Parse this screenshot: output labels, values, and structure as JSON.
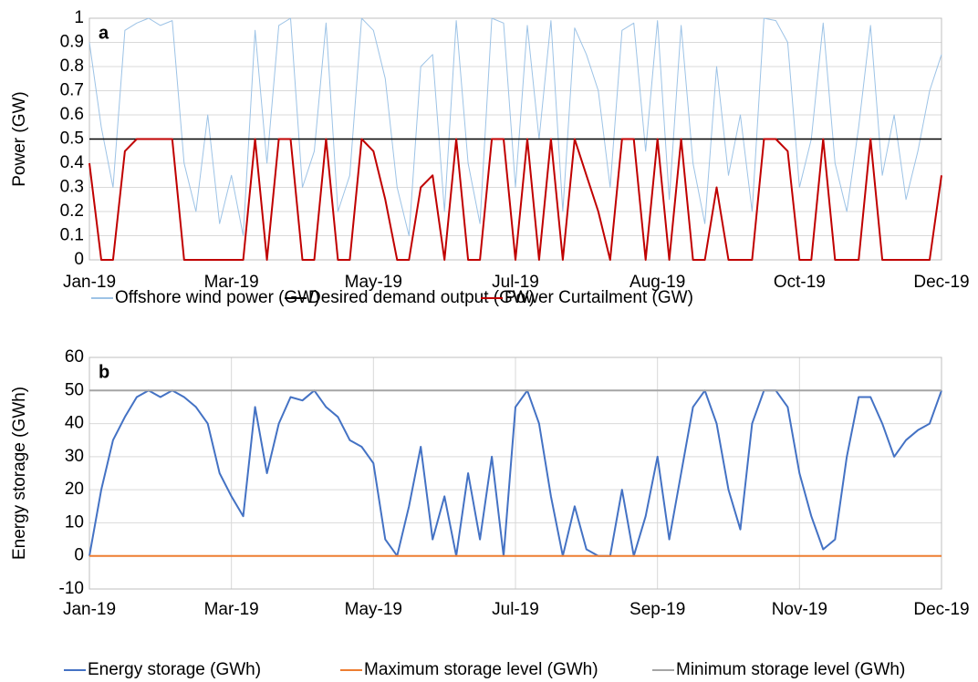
{
  "chart_data": [
    {
      "type": "line",
      "panel_label": "a",
      "ylabel": "Power (GW)",
      "categories": [
        "Jan-19",
        null,
        null,
        null,
        null,
        null,
        null,
        null,
        null,
        null,
        null,
        null,
        "Mar-19",
        null,
        null,
        null,
        null,
        null,
        null,
        null,
        null,
        null,
        null,
        null,
        "May-19",
        null,
        null,
        null,
        null,
        null,
        null,
        null,
        null,
        null,
        null,
        null,
        "Jul-19",
        null,
        null,
        null,
        null,
        null,
        null,
        null,
        null,
        null,
        null,
        null,
        "Aug-19",
        null,
        null,
        null,
        null,
        null,
        null,
        null,
        null,
        null,
        null,
        null,
        "Oct-19",
        null,
        null,
        null,
        null,
        null,
        null,
        null,
        null,
        null,
        null,
        null,
        "Dec-19"
      ],
      "series": [
        {
          "name": "Offshore wind power (GW)",
          "color": "#9dc3e6",
          "width": 1,
          "values": [
            0.9,
            0.55,
            0.3,
            0.95,
            0.98,
            1,
            0.97,
            0.99,
            0.4,
            0.2,
            0.6,
            0.15,
            0.35,
            0.1,
            0.95,
            0.4,
            0.97,
            1,
            0.3,
            0.45,
            0.98,
            0.2,
            0.35,
            1,
            0.95,
            0.75,
            0.3,
            0.1,
            0.8,
            0.85,
            0.2,
            0.99,
            0.4,
            0.15,
            1,
            0.98,
            0.3,
            0.97,
            0.5,
            0.99,
            0.2,
            0.96,
            0.85,
            0.7,
            0.3,
            0.95,
            0.98,
            0.45,
            0.99,
            0.25,
            0.97,
            0.4,
            0.15,
            0.8,
            0.35,
            0.6,
            0.2,
            1,
            0.99,
            0.9,
            0.3,
            0.5,
            0.98,
            0.4,
            0.2,
            0.55,
            0.97,
            0.35,
            0.6,
            0.25,
            0.45,
            0.7,
            0.85
          ]
        },
        {
          "name": "Desired demand output (GW)",
          "color": "#000000",
          "width": 1.5,
          "values": [
            0.5,
            0.5,
            0.5,
            0.5,
            0.5,
            0.5,
            0.5,
            0.5,
            0.5,
            0.5,
            0.5,
            0.5,
            0.5,
            0.5,
            0.5,
            0.5,
            0.5,
            0.5,
            0.5,
            0.5,
            0.5,
            0.5,
            0.5,
            0.5,
            0.5,
            0.5,
            0.5,
            0.5,
            0.5,
            0.5,
            0.5,
            0.5,
            0.5,
            0.5,
            0.5,
            0.5,
            0.5,
            0.5,
            0.5,
            0.5,
            0.5,
            0.5,
            0.5,
            0.5,
            0.5,
            0.5,
            0.5,
            0.5,
            0.5,
            0.5,
            0.5,
            0.5,
            0.5,
            0.5,
            0.5,
            0.5,
            0.5,
            0.5,
            0.5,
            0.5,
            0.5,
            0.5,
            0.5,
            0.5,
            0.5,
            0.5,
            0.5,
            0.5,
            0.5,
            0.5,
            0.5,
            0.5,
            0.5
          ]
        },
        {
          "name": "Power Curtailment (GW)",
          "color": "#c00000",
          "width": 2,
          "values": [
            0.4,
            0,
            0,
            0.45,
            0.5,
            0.5,
            0.5,
            0.5,
            0,
            0,
            0,
            0,
            0,
            0,
            0.5,
            0,
            0.5,
            0.5,
            0,
            0,
            0.5,
            0,
            0,
            0.5,
            0.45,
            0.25,
            0,
            0,
            0.3,
            0.35,
            0,
            0.5,
            0,
            0,
            0.5,
            0.5,
            0,
            0.5,
            0,
            0.5,
            0,
            0.5,
            0.35,
            0.2,
            0,
            0.5,
            0.5,
            0,
            0.5,
            0,
            0.5,
            0,
            0,
            0.3,
            0,
            0,
            0,
            0.5,
            0.5,
            0.45,
            0,
            0,
            0.5,
            0,
            0,
            0,
            0.5,
            0,
            0,
            0,
            0,
            0,
            0.35
          ]
        }
      ],
      "ylim": [
        0,
        1
      ],
      "yticks": [
        0,
        0.1,
        0.2,
        0.3,
        0.4,
        0.5,
        0.6,
        0.7,
        0.8,
        0.9,
        1
      ],
      "grid": "y"
    },
    {
      "type": "line",
      "panel_label": "b",
      "ylabel": "Energy storage (GWh)",
      "categories": [
        "Jan-19",
        null,
        null,
        null,
        null,
        null,
        null,
        null,
        null,
        null,
        null,
        null,
        "Mar-19",
        null,
        null,
        null,
        null,
        null,
        null,
        null,
        null,
        null,
        null,
        null,
        "May-19",
        null,
        null,
        null,
        null,
        null,
        null,
        null,
        null,
        null,
        null,
        null,
        "Jul-19",
        null,
        null,
        null,
        null,
        null,
        null,
        null,
        null,
        null,
        null,
        null,
        "Sep-19",
        null,
        null,
        null,
        null,
        null,
        null,
        null,
        null,
        null,
        null,
        null,
        "Nov-19",
        null,
        null,
        null,
        null,
        null,
        null,
        null,
        null,
        null,
        null,
        null,
        "Dec-19"
      ],
      "series": [
        {
          "name": "Energy storage (GWh)",
          "color": "#4472c4",
          "width": 2,
          "values": [
            0,
            20,
            35,
            42,
            48,
            50,
            48,
            50,
            48,
            45,
            40,
            25,
            18,
            12,
            45,
            25,
            40,
            48,
            47,
            50,
            45,
            42,
            35,
            33,
            28,
            5,
            0,
            15,
            33,
            5,
            18,
            0,
            25,
            5,
            30,
            0,
            45,
            50,
            40,
            18,
            0,
            15,
            2,
            0,
            0,
            20,
            0,
            12,
            30,
            5,
            25,
            45,
            50,
            40,
            20,
            8,
            40,
            50,
            50,
            45,
            25,
            12,
            2,
            5,
            30,
            48,
            48,
            40,
            30,
            35,
            38,
            40,
            50
          ]
        },
        {
          "name": "Maximum storage level (GWh)",
          "color": "#ed7d31",
          "width": 2,
          "values": [
            0,
            0,
            0,
            0,
            0,
            0,
            0,
            0,
            0,
            0,
            0,
            0,
            0,
            0,
            0,
            0,
            0,
            0,
            0,
            0,
            0,
            0,
            0,
            0,
            0,
            0,
            0,
            0,
            0,
            0,
            0,
            0,
            0,
            0,
            0,
            0,
            0,
            0,
            0,
            0,
            0,
            0,
            0,
            0,
            0,
            0,
            0,
            0,
            0,
            0,
            0,
            0,
            0,
            0,
            0,
            0,
            0,
            0,
            0,
            0,
            0,
            0,
            0,
            0,
            0,
            0,
            0,
            0,
            0,
            0,
            0,
            0,
            0
          ]
        },
        {
          "name": "Minimum storage level (GWh)",
          "color": "#a5a5a5",
          "width": 2,
          "values": [
            50,
            50,
            50,
            50,
            50,
            50,
            50,
            50,
            50,
            50,
            50,
            50,
            50,
            50,
            50,
            50,
            50,
            50,
            50,
            50,
            50,
            50,
            50,
            50,
            50,
            50,
            50,
            50,
            50,
            50,
            50,
            50,
            50,
            50,
            50,
            50,
            50,
            50,
            50,
            50,
            50,
            50,
            50,
            50,
            50,
            50,
            50,
            50,
            50,
            50,
            50,
            50,
            50,
            50,
            50,
            50,
            50,
            50,
            50,
            50,
            50,
            50,
            50,
            50,
            50,
            50,
            50,
            50,
            50,
            50,
            50,
            50,
            50
          ]
        }
      ],
      "ylim": [
        -10,
        60
      ],
      "yticks": [
        -10,
        0,
        10,
        20,
        30,
        40,
        50,
        60
      ],
      "grid": "both"
    }
  ]
}
